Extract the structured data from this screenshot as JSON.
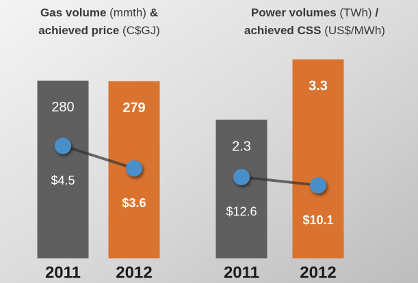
{
  "chart_data": [
    {
      "type": "bar",
      "title_lines": [
        [
          {
            "text": "Gas volume",
            "bold": true
          },
          {
            "text": " (mmth) ",
            "bold": false
          },
          {
            "text": "&",
            "bold": true
          }
        ],
        [
          {
            "text": "achieved price",
            "bold": true
          },
          {
            "text": " (C$GJ)",
            "bold": false
          }
        ]
      ],
      "categories": [
        "2011",
        "2012"
      ],
      "series": [
        {
          "values": [
            280,
            279
          ],
          "colors": [
            "#5f5f5f",
            "#d9732f"
          ]
        },
        {
          "values": [
            4.5,
            3.6
          ],
          "value_labels": [
            "$4.5",
            "$3.6"
          ],
          "axis": "y2",
          "color": "#4a8fc9"
        }
      ],
      "ylim": [
        0,
        323
      ],
      "y2lim": [
        0,
        8.2
      ]
    },
    {
      "type": "bar",
      "title_lines": [
        [
          {
            "text": "Power volumes",
            "bold": true
          },
          {
            "text": " (TWh) ",
            "bold": false
          },
          {
            "text": "/",
            "bold": true
          }
        ],
        [
          {
            "text": "achieved CSS",
            "bold": true
          },
          {
            "text": " (US$/MWh)",
            "bold": false
          }
        ]
      ],
      "categories": [
        "2011",
        "2012"
      ],
      "series": [
        {
          "values": [
            2.3,
            3.3
          ],
          "colors": [
            "#5f5f5f",
            "#d9732f"
          ]
        },
        {
          "values": [
            12.6,
            10.1
          ],
          "value_labels": [
            "$12.6",
            "$10.1"
          ],
          "axis": "y2",
          "color": "#4a8fc9"
        }
      ],
      "ylim": [
        0,
        3.4
      ],
      "y2lim": [
        -12,
        50
      ]
    }
  ]
}
